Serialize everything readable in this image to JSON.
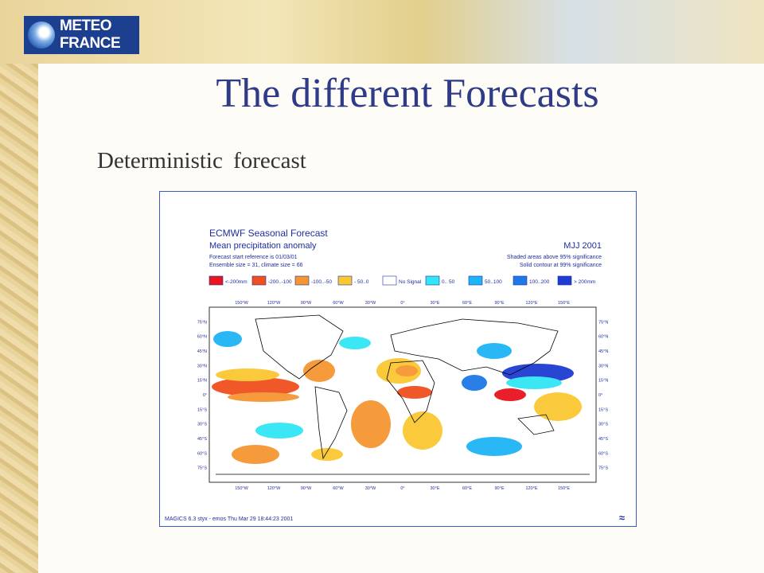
{
  "header": {
    "logo_line1": "METEO",
    "logo_line2": "FRANCE",
    "title": "The different Forecasts"
  },
  "subtitle": "Deterministic  forecast",
  "figure": {
    "title": "ECMWF Seasonal Forecast",
    "subtitle": "Mean precipitation anomaly",
    "info1": "Forecast start reference is 01/03/01",
    "info2": "Ensemble size = 31, climate size = 66",
    "period": "MJJ 2001",
    "note1": "Shaded areas above 95% significance",
    "note2": "Solid contour at 99% significance",
    "legend": [
      {
        "label": "<-200mm",
        "color": "#e8141e"
      },
      {
        "label": "-200..-100",
        "color": "#f0501e"
      },
      {
        "label": "-100..-50",
        "color": "#f59632"
      },
      {
        "label": "- 50..0",
        "color": "#fac832"
      },
      {
        "label": "No Signal",
        "color": "#ffffff"
      },
      {
        "label": "0.. 50",
        "color": "#32e6f5"
      },
      {
        "label": "50..100",
        "color": "#1eb4f5"
      },
      {
        "label": "100..200",
        "color": "#1e78e6"
      },
      {
        "label": "> 200mm",
        "color": "#1e3cd2"
      }
    ],
    "longitudes": [
      "150°W",
      "120°W",
      "90°W",
      "60°W",
      "30°W",
      "0°",
      "30°E",
      "60°E",
      "90°E",
      "120°E",
      "150°E"
    ],
    "latitudes": [
      "75°N",
      "60°N",
      "45°N",
      "30°N",
      "15°N",
      "0°",
      "15°S",
      "30°S",
      "45°S",
      "60°S",
      "75°S"
    ],
    "footer": "MAGICS 6.3 styx - emos Thu Mar 29 18:44:23 2001"
  }
}
